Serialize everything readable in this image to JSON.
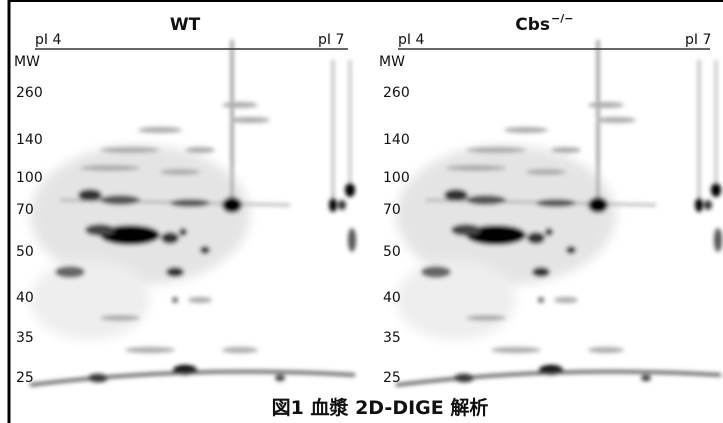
{
  "panels": [
    {
      "title": "WT",
      "pi_left": "pI 4",
      "pi_right": "pI 7",
      "mw_label": "MW",
      "mw_markers": [
        260,
        140,
        100,
        70,
        50,
        40,
        35,
        25
      ]
    },
    {
      "title": "Cbs",
      "title_sup": "−/−",
      "pi_left": "pI 4",
      "pi_right": "pI 7",
      "mw_label": "MW",
      "mw_markers": [
        260,
        140,
        100,
        70,
        50,
        40,
        35,
        25
      ]
    }
  ],
  "caption": "図1  血漿 2D-DIGE 解析"
}
